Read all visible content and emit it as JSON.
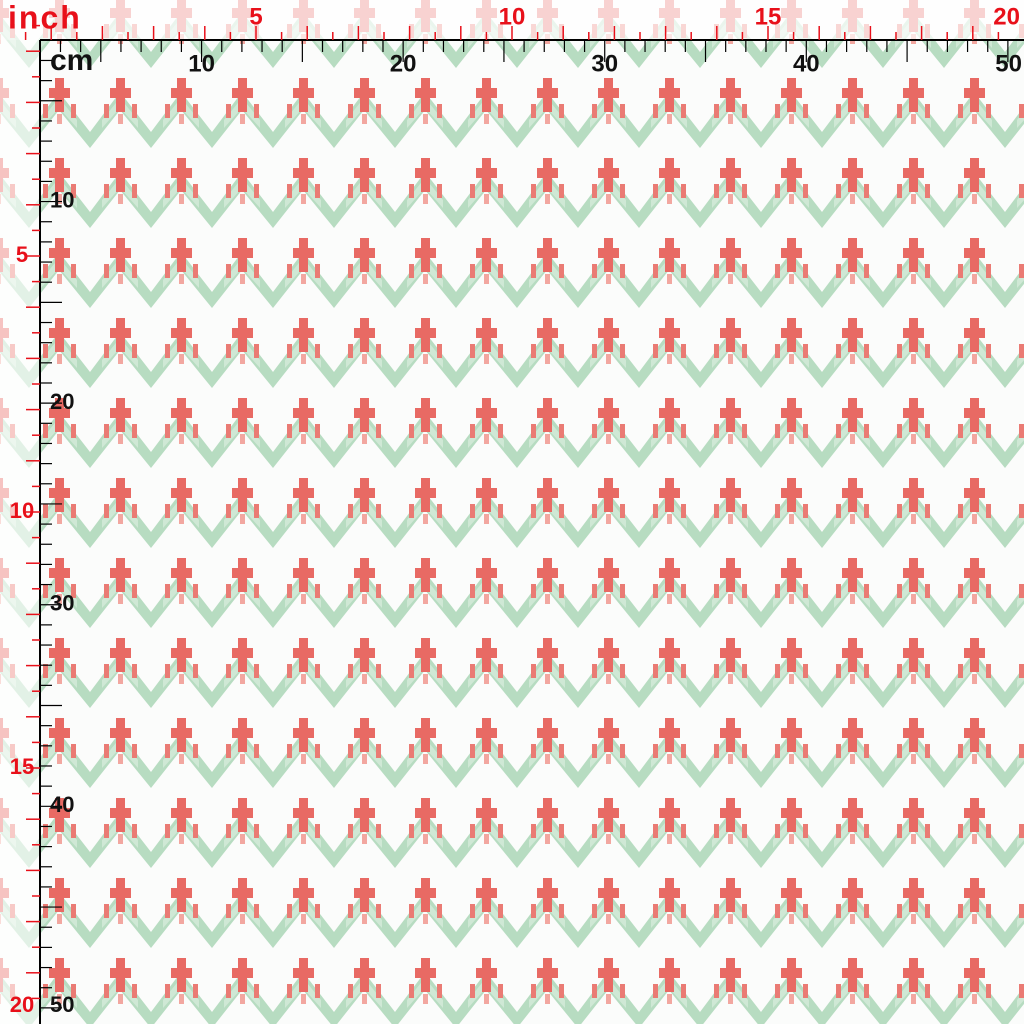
{
  "ruler": {
    "inch_unit": "inch",
    "cm_unit": "cm",
    "inch_labels": [
      5,
      10,
      15,
      20
    ],
    "cm_labels": [
      10,
      20,
      30,
      40,
      50
    ]
  }
}
